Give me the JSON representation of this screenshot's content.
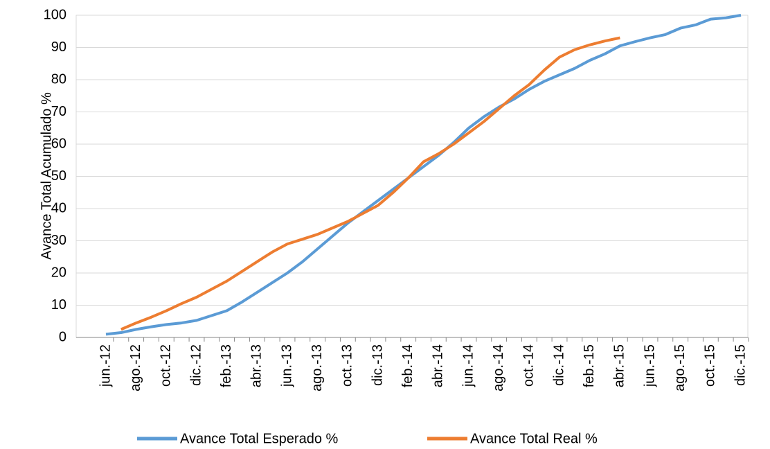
{
  "chart_data": {
    "type": "line",
    "y_label": "Avance Total  Acumulado %",
    "categories": [
      "jun.-12",
      null,
      "ago.-12",
      null,
      "oct.-12",
      null,
      "dic.-12",
      null,
      "feb.-13",
      null,
      "abr.-13",
      null,
      "jun.-13",
      null,
      "ago.-13",
      null,
      "oct.-13",
      null,
      "dic.-13",
      null,
      "feb.-14",
      null,
      "abr.-14",
      null,
      "jun.-14",
      null,
      "ago.-14",
      null,
      "oct.-14",
      null,
      "dic.-14",
      null,
      "feb.-15",
      null,
      "abr.-15",
      null,
      "jun.-15",
      null,
      "ago.-15",
      null,
      "oct.-15",
      null,
      "dic.-15"
    ],
    "series": [
      {
        "name": "Avance Total Esperado %",
        "color": "#5b9bd5",
        "values": [
          1,
          1.5,
          2.5,
          3.3,
          4,
          4.5,
          5.3,
          6.8,
          8.3,
          11,
          14,
          17,
          20,
          23.5,
          27.5,
          31.5,
          35.5,
          39,
          42.5,
          46,
          49.5,
          53,
          56.5,
          60.5,
          65,
          68.5,
          71.5,
          74,
          77,
          79.5,
          81.5,
          83.5,
          86,
          88,
          90.5,
          91.8,
          93,
          94,
          96,
          97,
          98.8,
          99.2,
          100
        ]
      },
      {
        "name": "Avance Total Real %",
        "color": "#ed7d31",
        "values": [
          null,
          2.5,
          4.5,
          6.3,
          8.3,
          10.5,
          12.5,
          15,
          17.5,
          20.5,
          23.5,
          26.5,
          29,
          30.5,
          32,
          34,
          36,
          38.5,
          41,
          45,
          49.5,
          54.5,
          57,
          60,
          63.5,
          67,
          71,
          75,
          78.5,
          83,
          87,
          89.3,
          90.8,
          92,
          93,
          null,
          null,
          null,
          null,
          null,
          null,
          null,
          null
        ]
      }
    ],
    "ylim": [
      0,
      100
    ],
    "yticks": [
      0,
      10,
      20,
      30,
      40,
      50,
      60,
      70,
      80,
      90,
      100
    ],
    "grid": true,
    "legend": "bottom"
  }
}
